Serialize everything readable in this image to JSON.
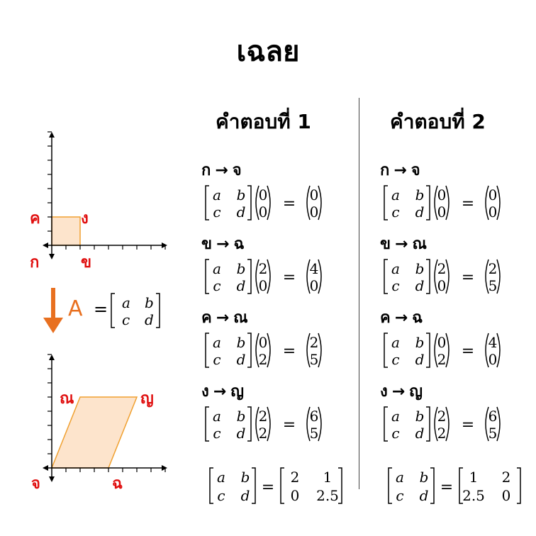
{
  "title": "เฉลย",
  "column_headers": [
    "คำตอบที่ 1",
    "คำตอบที่ 2"
  ],
  "diagram": {
    "original_labels": {
      "origin": "ก",
      "x_point": "ข",
      "y_point": "ค",
      "corner": "ง"
    },
    "transformed_labels": {
      "origin": "จ",
      "x_point": "ฉ",
      "y_point": "ณ",
      "corner": "ญ"
    },
    "matrix_label": "A",
    "matrix_symbols": [
      "a",
      "b",
      "c",
      "d"
    ],
    "fill_color": "#fde4cc",
    "stroke_color": "#f0a030",
    "arrow_color": "#e87020",
    "label_color": "#e01010"
  },
  "answers": [
    {
      "mappings": [
        {
          "from": "ก",
          "to": "จ",
          "input": [
            "0",
            "0"
          ],
          "output": [
            "0",
            "0"
          ]
        },
        {
          "from": "ข",
          "to": "ฉ",
          "input": [
            "2",
            "0"
          ],
          "output": [
            "4",
            "0"
          ]
        },
        {
          "from": "ค",
          "to": "ณ",
          "input": [
            "0",
            "2"
          ],
          "output": [
            "2",
            "5"
          ]
        },
        {
          "from": "ง",
          "to": "ญ",
          "input": [
            "2",
            "2"
          ],
          "output": [
            "6",
            "5"
          ]
        }
      ],
      "result": [
        "2",
        "1",
        "0",
        "2.5"
      ]
    },
    {
      "mappings": [
        {
          "from": "ก",
          "to": "จ",
          "input": [
            "0",
            "0"
          ],
          "output": [
            "0",
            "0"
          ]
        },
        {
          "from": "ข",
          "to": "ณ",
          "input": [
            "2",
            "0"
          ],
          "output": [
            "2",
            "5"
          ]
        },
        {
          "from": "ค",
          "to": "ฉ",
          "input": [
            "0",
            "2"
          ],
          "output": [
            "4",
            "0"
          ]
        },
        {
          "from": "ง",
          "to": "ญ",
          "input": [
            "2",
            "2"
          ],
          "output": [
            "6",
            "5"
          ]
        }
      ],
      "result": [
        "1",
        "2",
        "2.5",
        "0"
      ]
    }
  ]
}
